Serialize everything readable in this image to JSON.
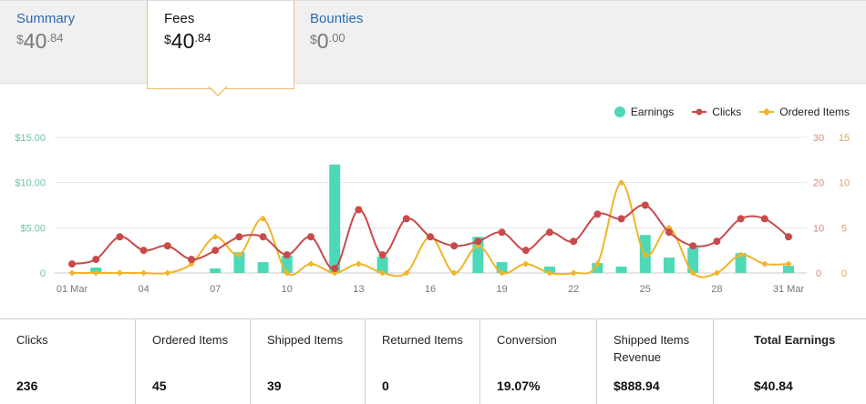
{
  "tabs": [
    {
      "title": "Summary",
      "currency": "$",
      "whole": "40",
      "cents": ".84"
    },
    {
      "title": "Fees",
      "currency": "$",
      "whole": "40",
      "cents": ".84"
    },
    {
      "title": "Bounties",
      "currency": "$",
      "whole": "0",
      "cents": ".00"
    }
  ],
  "active_tab": "Fees",
  "colors": {
    "earnings": "#4dd9b8",
    "clicks": "#c94a4a",
    "ordered": "#f0b429",
    "accent": "#f0c070",
    "link": "#2b6ab0"
  },
  "legend": {
    "earnings": "Earnings",
    "clicks": "Clicks",
    "ordered": "Ordered Items"
  },
  "chart_data": {
    "type": "bar+line",
    "x": [
      "01 Mar",
      "02",
      "03",
      "04",
      "05",
      "06",
      "07",
      "08",
      "09",
      "10",
      "11",
      "12",
      "13",
      "14",
      "15",
      "16",
      "17",
      "18",
      "19",
      "20",
      "21",
      "22",
      "23",
      "24",
      "25",
      "26",
      "27",
      "28",
      "29",
      "30",
      "31 Mar"
    ],
    "x_ticks": [
      "01 Mar",
      "04",
      "07",
      "10",
      "13",
      "16",
      "19",
      "22",
      "25",
      "28",
      "31 Mar"
    ],
    "left_axis_ticks": [
      "$15.00",
      "$10.00",
      "$5.00",
      "0"
    ],
    "left_axis_range": [
      0,
      15
    ],
    "right_axis_clicks_ticks": [
      "30",
      "20",
      "10",
      "0"
    ],
    "right_axis_clicks_range": [
      0,
      30
    ],
    "right_axis_ordered_ticks": [
      "15",
      "10",
      "5",
      "0"
    ],
    "right_axis_ordered_range": [
      0,
      15
    ],
    "series": [
      {
        "name": "Earnings",
        "type": "bar",
        "axis": "left",
        "values": [
          0,
          0.6,
          0,
          0,
          0,
          0,
          0.5,
          2.3,
          1.2,
          1.9,
          0,
          12,
          0,
          1.8,
          0,
          0,
          0,
          4,
          1.2,
          0,
          0.7,
          0,
          1.1,
          0.7,
          4.2,
          1.7,
          2.8,
          0,
          2.2,
          0,
          0.8
        ]
      },
      {
        "name": "Clicks",
        "type": "line",
        "axis": "right_clicks",
        "values": [
          2,
          3,
          8,
          5,
          6,
          3,
          5,
          8,
          8,
          4,
          8,
          1,
          14,
          4,
          12,
          8,
          6,
          7,
          9,
          5,
          9,
          7,
          13,
          12,
          15,
          9,
          6,
          7,
          12,
          12,
          8
        ]
      },
      {
        "name": "Ordered Items",
        "type": "line",
        "axis": "right_ordered",
        "values": [
          0,
          0,
          0,
          0,
          0,
          1,
          4,
          2,
          6,
          0,
          1,
          0,
          1,
          0,
          0,
          4,
          0,
          3,
          0,
          1,
          0,
          0,
          1,
          10,
          2,
          5,
          0,
          0,
          2,
          1,
          1
        ]
      }
    ]
  },
  "stats": [
    {
      "label": "Clicks",
      "value": "236"
    },
    {
      "label": "Ordered Items",
      "value": "45"
    },
    {
      "label": "Shipped Items",
      "value": "39"
    },
    {
      "label": "Returned Items",
      "value": "0"
    },
    {
      "label": "Conversion",
      "value": "19.07%"
    },
    {
      "label": "Shipped Items Revenue",
      "value": "$888.94"
    },
    {
      "label": "Total Earnings",
      "value": "$40.84"
    }
  ]
}
